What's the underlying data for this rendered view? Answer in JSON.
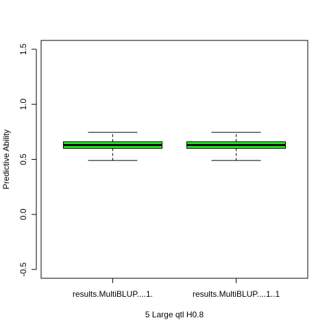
{
  "chart_data": {
    "type": "boxplot",
    "title": "",
    "xlabel": "5 Large qtl H0.8",
    "ylabel": "Predictive Ability",
    "ylim": [
      -0.58,
      1.58
    ],
    "yticks": [
      -0.5,
      0.0,
      0.5,
      1.0,
      1.5
    ],
    "ytick_labels": [
      "-0.5",
      "0.0",
      "0.5",
      "1.0",
      "1.5"
    ],
    "categories": [
      "results.MultiBLUP....1.",
      "results.MultiBLUP....1..1"
    ],
    "boxes": [
      {
        "name": "results.MultiBLUP....1.",
        "whisker_low": 0.49,
        "q1": 0.6,
        "median": 0.63,
        "q3": 0.66,
        "whisker_high": 0.745
      },
      {
        "name": "results.MultiBLUP....1..1",
        "whisker_low": 0.49,
        "q1": 0.6,
        "median": 0.63,
        "q3": 0.66,
        "whisker_high": 0.745
      }
    ],
    "box_fill": "#22ee22",
    "line_color": "#000000"
  }
}
